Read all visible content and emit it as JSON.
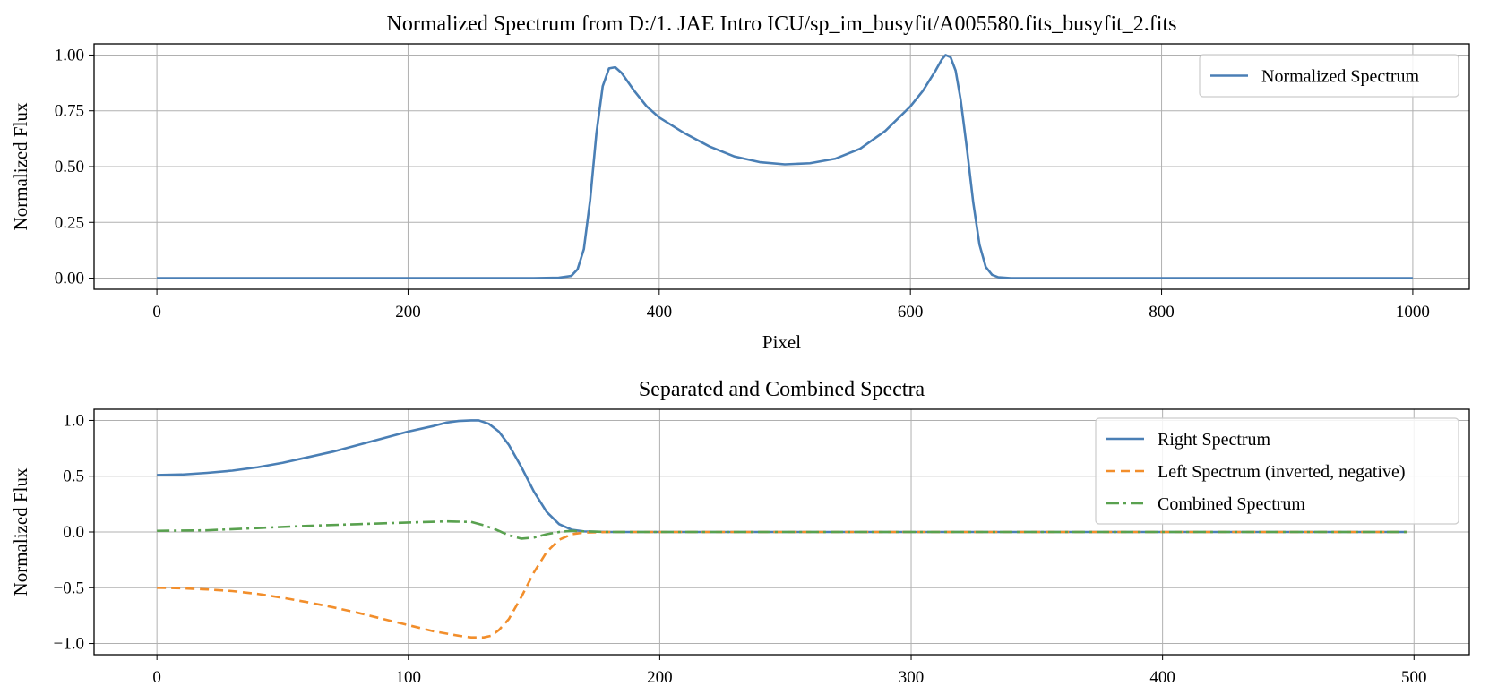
{
  "chart_data": [
    {
      "type": "line",
      "title": "Normalized Spectrum from D:/1. JAE Intro ICU/sp_im_busyfit/A005580.fits_busyfit_2.fits",
      "xlabel": "Pixel",
      "ylabel": "Normalized Flux",
      "xlim": [
        -50,
        1045
      ],
      "ylim": [
        -0.05,
        1.05
      ],
      "xticks": [
        0,
        200,
        400,
        600,
        800,
        1000
      ],
      "yticks": [
        0.0,
        0.25,
        0.5,
        0.75,
        1.0
      ],
      "xtick_labels": [
        "0",
        "200",
        "400",
        "600",
        "800",
        "1000"
      ],
      "ytick_labels": [
        "0.00",
        "0.25",
        "0.50",
        "0.75",
        "1.00"
      ],
      "grid": true,
      "legend_position": "top-right",
      "series": [
        {
          "name": "Normalized Spectrum",
          "color": "#4a7fb5",
          "style": "solid",
          "x": [
            0,
            300,
            320,
            330,
            335,
            340,
            345,
            350,
            355,
            360,
            365,
            370,
            380,
            390,
            400,
            420,
            440,
            460,
            480,
            500,
            520,
            540,
            560,
            580,
            600,
            610,
            620,
            625,
            628,
            632,
            636,
            640,
            645,
            650,
            655,
            660,
            665,
            670,
            680,
            700,
            1000
          ],
          "y": [
            0.0,
            0.0,
            0.002,
            0.01,
            0.04,
            0.13,
            0.35,
            0.65,
            0.86,
            0.94,
            0.945,
            0.92,
            0.84,
            0.77,
            0.72,
            0.65,
            0.59,
            0.545,
            0.52,
            0.51,
            0.515,
            0.535,
            0.58,
            0.66,
            0.77,
            0.84,
            0.93,
            0.98,
            1.0,
            0.99,
            0.93,
            0.8,
            0.58,
            0.34,
            0.15,
            0.05,
            0.015,
            0.004,
            0.0,
            0.0,
            0.0
          ]
        }
      ]
    },
    {
      "type": "line",
      "title": "Separated and Combined Spectra",
      "xlabel": "",
      "ylabel": "Normalized Flux",
      "xlim": [
        -25,
        522
      ],
      "ylim": [
        -1.1,
        1.1
      ],
      "xticks": [
        0,
        100,
        200,
        300,
        400,
        500
      ],
      "yticks": [
        -1.0,
        -0.5,
        0.0,
        0.5,
        1.0
      ],
      "xtick_labels": [
        "0",
        "100",
        "200",
        "300",
        "400",
        "500"
      ],
      "ytick_labels": [
        "−1.0",
        "−0.5",
        "0.0",
        "0.5",
        "1.0"
      ],
      "grid": true,
      "legend_position": "top-right",
      "series": [
        {
          "name": "Right Spectrum",
          "color": "#4a7fb5",
          "style": "solid",
          "x": [
            0,
            10,
            20,
            30,
            40,
            50,
            60,
            70,
            80,
            90,
            100,
            110,
            115,
            120,
            125,
            128,
            132,
            136,
            140,
            145,
            150,
            155,
            160,
            165,
            170,
            180,
            200,
            497
          ],
          "y": [
            0.51,
            0.515,
            0.53,
            0.55,
            0.58,
            0.62,
            0.67,
            0.72,
            0.78,
            0.84,
            0.9,
            0.95,
            0.98,
            0.995,
            1.0,
            1.0,
            0.97,
            0.9,
            0.78,
            0.58,
            0.36,
            0.18,
            0.07,
            0.02,
            0.005,
            0.0,
            0.0,
            0.0
          ]
        },
        {
          "name": "Left Spectrum (inverted, negative)",
          "color": "#f28e2b",
          "style": "dashed",
          "x": [
            0,
            10,
            20,
            30,
            40,
            50,
            60,
            70,
            80,
            90,
            100,
            110,
            120,
            125,
            130,
            133,
            136,
            140,
            145,
            150,
            155,
            160,
            165,
            170,
            180,
            200,
            497
          ],
          "y": [
            -0.5,
            -0.505,
            -0.515,
            -0.53,
            -0.555,
            -0.59,
            -0.63,
            -0.675,
            -0.725,
            -0.78,
            -0.835,
            -0.89,
            -0.93,
            -0.945,
            -0.945,
            -0.93,
            -0.88,
            -0.78,
            -0.58,
            -0.36,
            -0.18,
            -0.07,
            -0.02,
            -0.005,
            0.0,
            0.0,
            0.0
          ]
        },
        {
          "name": "Combined Spectrum",
          "color": "#59a14f",
          "style": "dashdot",
          "x": [
            0,
            20,
            40,
            60,
            80,
            100,
            115,
            125,
            130,
            135,
            140,
            145,
            150,
            155,
            160,
            165,
            170,
            180,
            200,
            497
          ],
          "y": [
            0.01,
            0.015,
            0.035,
            0.055,
            0.07,
            0.085,
            0.095,
            0.09,
            0.06,
            0.02,
            -0.03,
            -0.06,
            -0.05,
            -0.02,
            0.0,
            0.01,
            0.005,
            0.0,
            0.0,
            0.0
          ]
        }
      ]
    }
  ]
}
